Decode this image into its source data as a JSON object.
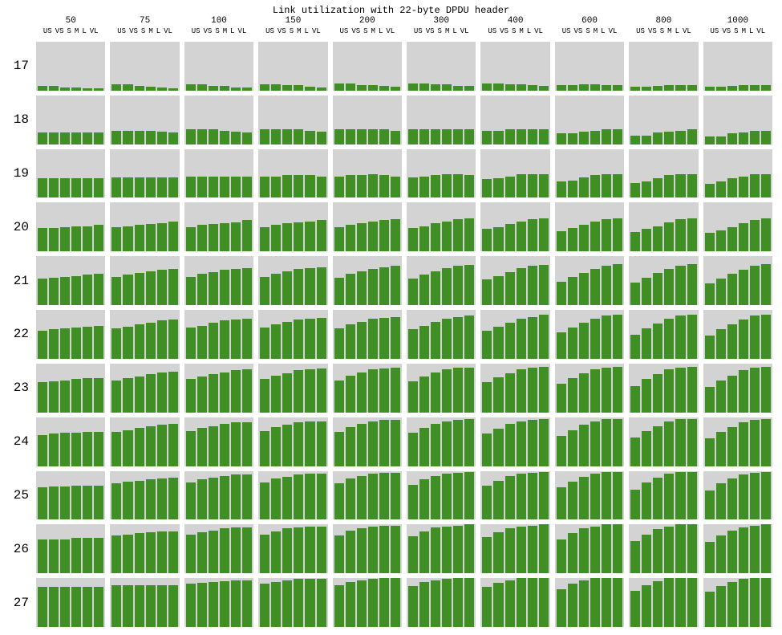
{
  "chart": {
    "type": "bar-small-multiples",
    "title": "Link utilization with 22-byte DPDU header",
    "title_fontsize": 12,
    "font_family": "Courier New, monospace",
    "background_color": "#ffffff",
    "cell_background_color": "#d3d3d3",
    "bar_color": "#3f8f24",
    "text_color": "#000000",
    "row_label_fontsize": 16,
    "col_header_fontsize": 11,
    "category_label_fontsize": 9,
    "ylim": [
      0,
      100
    ],
    "row_labels": [
      "17",
      "18",
      "19",
      "20",
      "21",
      "22",
      "23",
      "24",
      "25",
      "26",
      "27"
    ],
    "col_labels": [
      "50",
      "75",
      "100",
      "150",
      "200",
      "300",
      "400",
      "600",
      "800",
      "1000"
    ],
    "categories": [
      "US",
      "VS",
      "S",
      "M",
      "L",
      "VL"
    ],
    "values": [
      [
        [
          10,
          10,
          6,
          6,
          4,
          4
        ],
        [
          13,
          13,
          10,
          8,
          6,
          4
        ],
        [
          13,
          13,
          10,
          10,
          6,
          6
        ],
        [
          13,
          13,
          12,
          12,
          8,
          6
        ],
        [
          14,
          14,
          12,
          12,
          10,
          8
        ],
        [
          14,
          14,
          13,
          13,
          10,
          10
        ],
        [
          14,
          14,
          13,
          13,
          12,
          10
        ],
        [
          12,
          12,
          13,
          13,
          12,
          12
        ],
        [
          8,
          8,
          10,
          12,
          12,
          12
        ],
        [
          8,
          8,
          10,
          12,
          12,
          12
        ]
      ],
      [
        [
          24,
          24,
          24,
          24,
          24,
          24
        ],
        [
          28,
          28,
          28,
          28,
          26,
          24
        ],
        [
          30,
          30,
          30,
          28,
          26,
          24
        ],
        [
          30,
          30,
          30,
          30,
          28,
          26
        ],
        [
          30,
          30,
          30,
          30,
          30,
          28
        ],
        [
          30,
          30,
          30,
          30,
          30,
          30
        ],
        [
          27,
          27,
          30,
          30,
          30,
          30
        ],
        [
          22,
          22,
          26,
          28,
          30,
          30
        ],
        [
          18,
          18,
          24,
          26,
          28,
          30
        ],
        [
          16,
          16,
          22,
          24,
          28,
          28
        ]
      ],
      [
        [
          40,
          40,
          40,
          40,
          40,
          40
        ],
        [
          42,
          42,
          42,
          42,
          42,
          42
        ],
        [
          44,
          44,
          44,
          44,
          44,
          44
        ],
        [
          44,
          44,
          46,
          46,
          46,
          44
        ],
        [
          44,
          46,
          46,
          48,
          46,
          44
        ],
        [
          42,
          44,
          46,
          48,
          48,
          46
        ],
        [
          38,
          40,
          44,
          48,
          48,
          48
        ],
        [
          34,
          36,
          42,
          46,
          48,
          48
        ],
        [
          30,
          34,
          40,
          46,
          48,
          48
        ],
        [
          28,
          34,
          40,
          44,
          48,
          48
        ]
      ],
      [
        [
          48,
          48,
          50,
          52,
          52,
          54
        ],
        [
          50,
          52,
          54,
          56,
          58,
          62
        ],
        [
          50,
          54,
          56,
          58,
          60,
          64
        ],
        [
          50,
          54,
          58,
          60,
          62,
          64
        ],
        [
          50,
          54,
          58,
          62,
          64,
          66
        ],
        [
          48,
          52,
          58,
          62,
          66,
          68
        ],
        [
          46,
          50,
          56,
          62,
          66,
          68
        ],
        [
          42,
          48,
          54,
          62,
          66,
          68
        ],
        [
          40,
          46,
          52,
          60,
          66,
          68
        ],
        [
          38,
          44,
          50,
          58,
          64,
          68
        ]
      ],
      [
        [
          54,
          56,
          58,
          60,
          62,
          64
        ],
        [
          58,
          62,
          66,
          70,
          72,
          74
        ],
        [
          58,
          64,
          68,
          72,
          74,
          76
        ],
        [
          58,
          64,
          70,
          74,
          76,
          78
        ],
        [
          56,
          64,
          70,
          74,
          78,
          80
        ],
        [
          54,
          62,
          70,
          76,
          80,
          82
        ],
        [
          52,
          60,
          68,
          76,
          80,
          82
        ],
        [
          48,
          58,
          66,
          74,
          80,
          84
        ],
        [
          46,
          56,
          66,
          74,
          80,
          84
        ],
        [
          44,
          54,
          64,
          72,
          80,
          84
        ]
      ],
      [
        [
          58,
          60,
          62,
          64,
          66,
          68
        ],
        [
          62,
          66,
          70,
          74,
          78,
          80
        ],
        [
          64,
          68,
          74,
          78,
          80,
          82
        ],
        [
          64,
          70,
          76,
          80,
          82,
          84
        ],
        [
          62,
          70,
          76,
          82,
          84,
          86
        ],
        [
          60,
          68,
          76,
          82,
          86,
          88
        ],
        [
          58,
          66,
          74,
          82,
          86,
          90
        ],
        [
          54,
          64,
          74,
          82,
          88,
          90
        ],
        [
          50,
          62,
          72,
          82,
          88,
          90
        ],
        [
          48,
          60,
          70,
          80,
          88,
          90
        ]
      ],
      [
        [
          62,
          64,
          66,
          68,
          70,
          70
        ],
        [
          66,
          70,
          74,
          78,
          82,
          84
        ],
        [
          68,
          74,
          78,
          82,
          86,
          88
        ],
        [
          68,
          76,
          80,
          86,
          88,
          90
        ],
        [
          66,
          76,
          82,
          88,
          90,
          92
        ],
        [
          64,
          74,
          82,
          88,
          92,
          92
        ],
        [
          62,
          72,
          80,
          88,
          92,
          94
        ],
        [
          58,
          70,
          80,
          88,
          92,
          94
        ],
        [
          54,
          68,
          78,
          88,
          92,
          94
        ],
        [
          52,
          66,
          76,
          86,
          92,
          94
        ]
      ],
      [
        [
          64,
          66,
          68,
          68,
          70,
          70
        ],
        [
          70,
          74,
          78,
          82,
          84,
          86
        ],
        [
          72,
          78,
          82,
          86,
          90,
          90
        ],
        [
          72,
          80,
          84,
          90,
          92,
          92
        ],
        [
          70,
          80,
          86,
          92,
          94,
          94
        ],
        [
          68,
          78,
          86,
          92,
          94,
          96
        ],
        [
          66,
          76,
          86,
          92,
          94,
          96
        ],
        [
          62,
          74,
          84,
          92,
          96,
          96
        ],
        [
          58,
          72,
          82,
          92,
          96,
          96
        ],
        [
          56,
          70,
          80,
          90,
          94,
          96
        ]
      ],
      [
        [
          66,
          68,
          68,
          70,
          70,
          70
        ],
        [
          74,
          78,
          80,
          82,
          84,
          86
        ],
        [
          76,
          82,
          86,
          90,
          92,
          92
        ],
        [
          76,
          84,
          88,
          92,
          94,
          94
        ],
        [
          74,
          84,
          90,
          94,
          96,
          96
        ],
        [
          72,
          82,
          90,
          94,
          96,
          98
        ],
        [
          70,
          80,
          90,
          94,
          96,
          98
        ],
        [
          66,
          78,
          88,
          94,
          98,
          98
        ],
        [
          62,
          76,
          86,
          94,
          98,
          98
        ],
        [
          60,
          74,
          84,
          92,
          96,
          98
        ]
      ],
      [
        [
          70,
          70,
          70,
          72,
          72,
          72
        ],
        [
          78,
          80,
          82,
          84,
          86,
          86
        ],
        [
          80,
          84,
          88,
          92,
          94,
          94
        ],
        [
          80,
          86,
          92,
          94,
          96,
          96
        ],
        [
          78,
          88,
          92,
          96,
          98,
          98
        ],
        [
          76,
          86,
          94,
          96,
          98,
          100
        ],
        [
          74,
          84,
          92,
          96,
          98,
          100
        ],
        [
          70,
          82,
          92,
          96,
          100,
          100
        ],
        [
          66,
          80,
          90,
          96,
          100,
          100
        ],
        [
          64,
          78,
          88,
          94,
          98,
          100
        ]
      ],
      [
        [
          82,
          82,
          82,
          82,
          82,
          82
        ],
        [
          86,
          86,
          86,
          86,
          86,
          86
        ],
        [
          88,
          90,
          92,
          94,
          96,
          96
        ],
        [
          88,
          92,
          96,
          98,
          98,
          98
        ],
        [
          86,
          92,
          96,
          98,
          100,
          100
        ],
        [
          84,
          92,
          96,
          98,
          100,
          100
        ],
        [
          82,
          90,
          96,
          100,
          100,
          100
        ],
        [
          78,
          88,
          96,
          100,
          100,
          100
        ],
        [
          74,
          86,
          94,
          100,
          100,
          100
        ],
        [
          72,
          84,
          92,
          98,
          100,
          100
        ]
      ]
    ]
  }
}
